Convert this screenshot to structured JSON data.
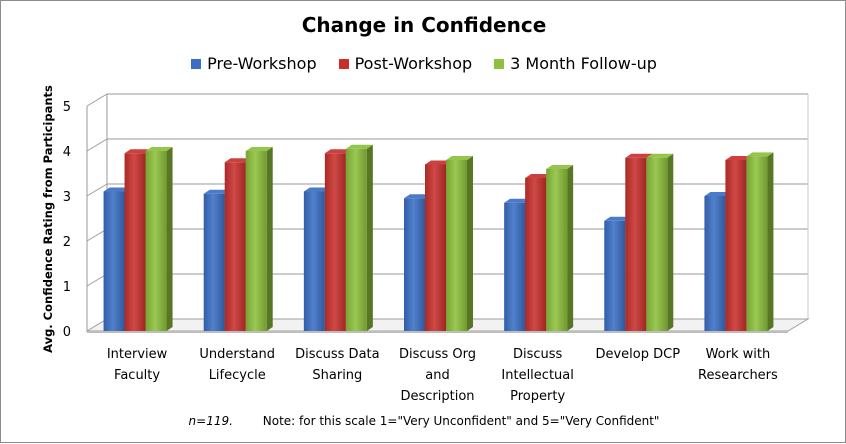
{
  "chart_data": {
    "type": "bar",
    "title": "Change in Confidence",
    "ylabel": "Avg. Confidence Rating from Participants",
    "xlabel": "",
    "ylim": [
      0,
      5
    ],
    "yticks": [
      "0",
      "1",
      "2",
      "3",
      "4",
      "5"
    ],
    "grid": true,
    "legend_position": "top",
    "categories": [
      [
        "Interview",
        "Faculty"
      ],
      [
        "Understand",
        "Lifecycle"
      ],
      [
        "Discuss Data",
        "Sharing"
      ],
      [
        "Discuss Org",
        "and",
        "Description"
      ],
      [
        "Discuss",
        "Intellectual",
        "Property"
      ],
      [
        "Develop DCP"
      ],
      [
        "Work with",
        "Researchers"
      ]
    ],
    "series": [
      {
        "name": "Pre-Workshop",
        "color": "#3a6fc4",
        "values": [
          3.1,
          3.05,
          3.1,
          2.95,
          2.85,
          2.45,
          3.0
        ]
      },
      {
        "name": "Post-Workshop",
        "color": "#c8302d",
        "values": [
          3.95,
          3.75,
          3.95,
          3.7,
          3.4,
          3.85,
          3.8
        ]
      },
      {
        "name": "3 Month Follow-up",
        "color": "#8dc03c",
        "values": [
          4.0,
          4.0,
          4.05,
          3.8,
          3.6,
          3.85,
          3.88
        ]
      }
    ]
  },
  "footnote": {
    "n": "n=119.",
    "note": "Note: for this scale 1=\"Very Unconfident\" and 5=\"Very Confident\""
  }
}
